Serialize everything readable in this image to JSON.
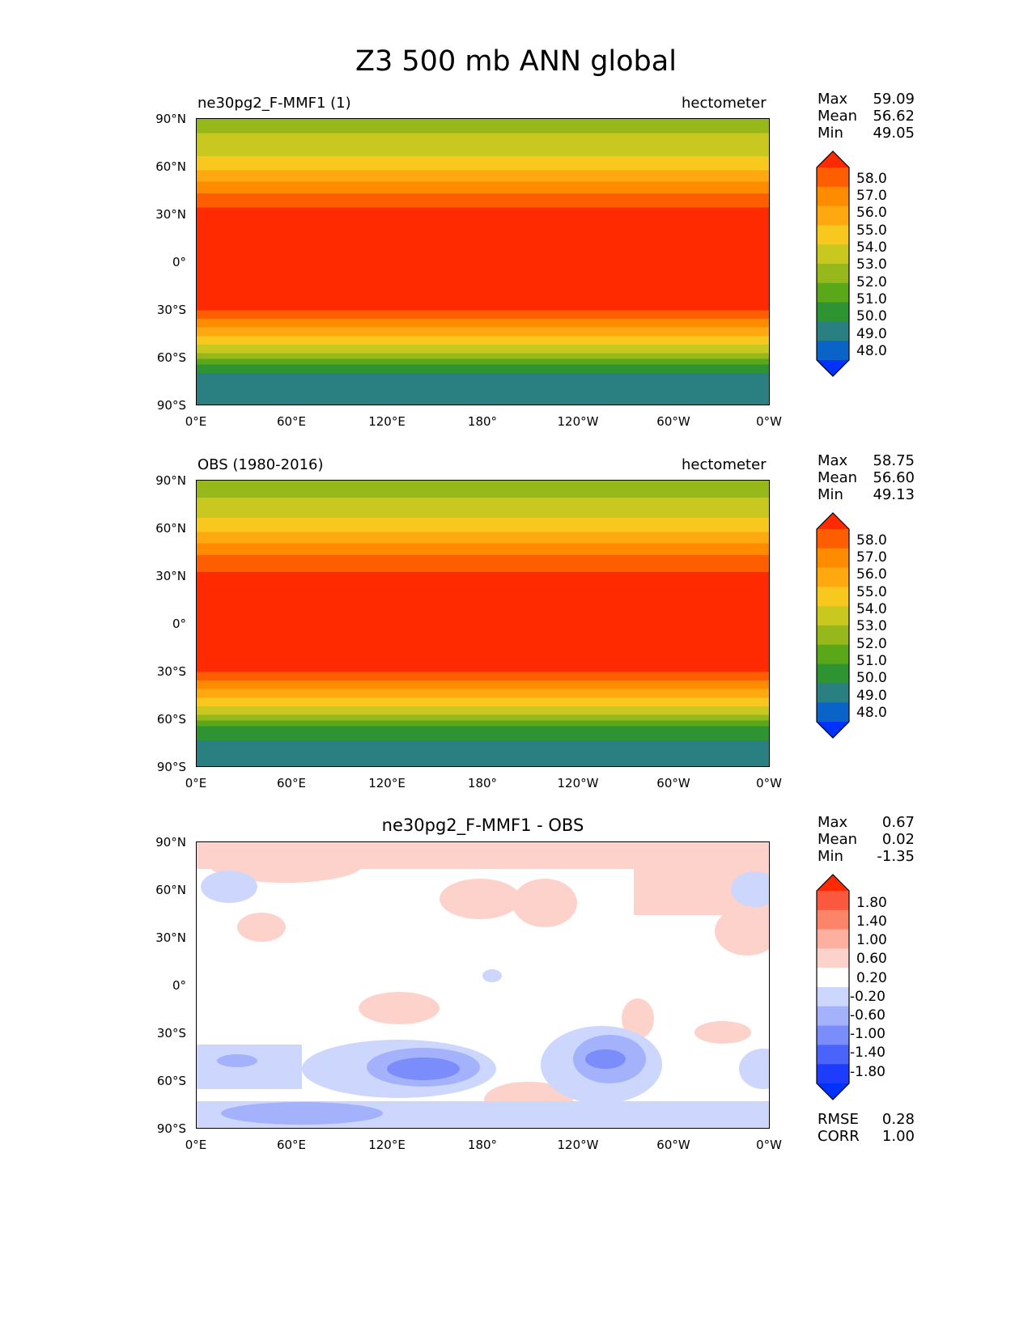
{
  "title": "Z3 500 mb ANN global",
  "x_ticks": [
    "0°E",
    "60°E",
    "120°E",
    "180°",
    "120°W",
    "60°W",
    "0°W"
  ],
  "y_ticks": [
    "90°N",
    "60°N",
    "30°N",
    "0°",
    "30°S",
    "60°S",
    "90°S"
  ],
  "stat_labels": {
    "max": "Max",
    "mean": "Mean",
    "min": "Min",
    "rmse": "RMSE",
    "corr": "CORR"
  },
  "panels": [
    {
      "left_title": "ne30pg2_F-MMF1 (1)",
      "center_title": "",
      "right_title": "hectometer",
      "stats": {
        "max": "59.09",
        "mean": "56.62",
        "min": "49.05"
      },
      "colorbar_labels": [
        "58.0",
        "57.0",
        "56.0",
        "55.0",
        "54.0",
        "53.0",
        "52.0",
        "51.0",
        "50.0",
        "49.0",
        "48.0"
      ]
    },
    {
      "left_title": "OBS (1980-2016)",
      "center_title": "",
      "right_title": "hectometer",
      "stats": {
        "max": "58.75",
        "mean": "56.60",
        "min": "49.13"
      },
      "colorbar_labels": [
        "58.0",
        "57.0",
        "56.0",
        "55.0",
        "54.0",
        "53.0",
        "52.0",
        "51.0",
        "50.0",
        "49.0",
        "48.0"
      ]
    },
    {
      "left_title": "",
      "center_title": "ne30pg2_F-MMF1 - OBS",
      "right_title": "",
      "stats": {
        "max": "0.67",
        "mean": "0.02",
        "min": "-1.35",
        "rmse": "0.28",
        "corr": "1.00"
      },
      "colorbar_labels": [
        "1.80",
        "1.40",
        "1.00",
        "0.60",
        "0.20",
        "-0.20",
        "-0.60",
        "-1.00",
        "-1.40",
        "-1.80"
      ]
    }
  ],
  "colors": {
    "field_bands_top_to_bottom": [
      "#ff2a00",
      "#ff5e00",
      "#ff8c00",
      "#ffa810",
      "#f8c81e",
      "#c8c820",
      "#96b81a",
      "#5aa81a",
      "#2e9432",
      "#2a8080",
      "#0a64c8",
      "#0032ff"
    ],
    "diff_bands_top_to_bottom": [
      "#ff2a00",
      "#fb5840",
      "#fc8468",
      "#fdb0a0",
      "#fdd2cb",
      "#ffffff",
      "#cdd6fc",
      "#a4b2fb",
      "#7a8dfa",
      "#4a64fb",
      "#1e3cfd",
      "#0032ff"
    ]
  }
}
